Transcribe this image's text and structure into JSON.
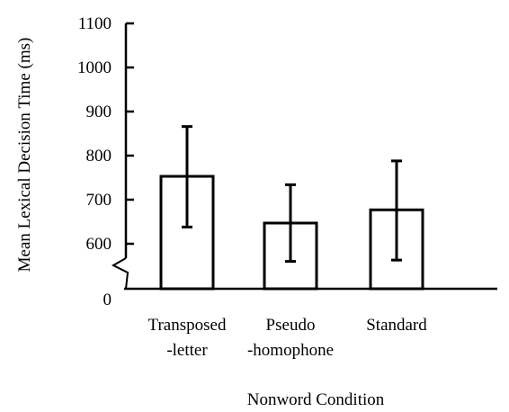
{
  "chart_data": {
    "type": "bar",
    "title": "",
    "xlabel": "Nonword Condition",
    "ylabel": "Mean Lexical Decision Time (ms)",
    "categories": [
      [
        "Transposed",
        "-letter"
      ],
      [
        "Pseudo",
        "-homophone"
      ],
      [
        "Standard"
      ]
    ],
    "values": [
      753,
      647,
      677
    ],
    "error_bars": [
      {
        "low": 638,
        "high": 866
      },
      {
        "low": 560,
        "high": 734
      },
      {
        "low": 563,
        "high": 788
      }
    ],
    "y_ticks": [
      1100,
      1000,
      900,
      800,
      700,
      600
    ],
    "y_break": {
      "shown": true,
      "bottom_label": "0"
    },
    "ylim": [
      600,
      1100
    ],
    "grid": false,
    "legend": "none",
    "bar_fill": "#ffffff",
    "bar_stroke": "#000000"
  }
}
